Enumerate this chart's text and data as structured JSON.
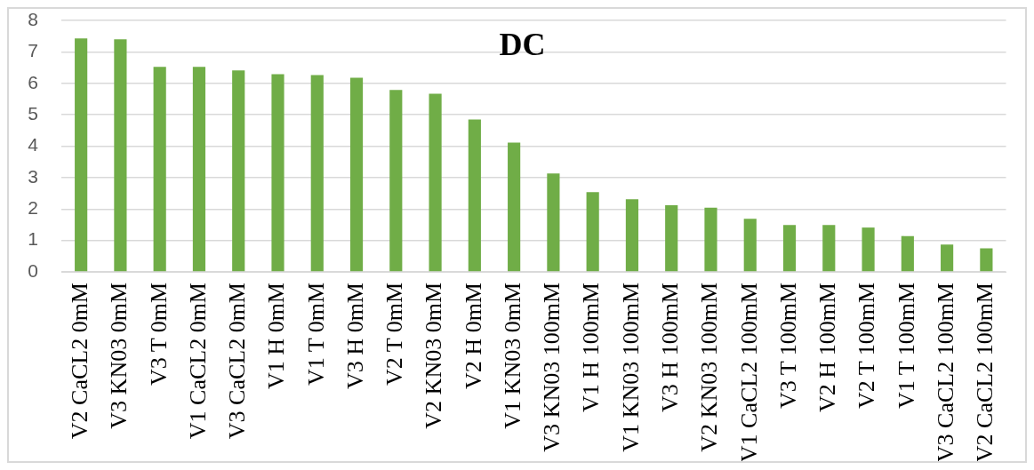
{
  "chart_data": {
    "type": "bar",
    "title": "DC",
    "categories": [
      "V2 CaCL2 0mM",
      "V3 KN03 0mM",
      "V3 T 0mM",
      "V1 CaCL2 0mM",
      "V3 CaCL2 0mM",
      "V1 H 0mM",
      "V1 T 0mM",
      "V3 H 0mM",
      "V2 T 0mM",
      "V2 KN03 0mM",
      "V2 H 0mM",
      "V1 KN03 0mM",
      "V3 KN03 100mM",
      "V1 H 100mM",
      "V1 KN03 100mM",
      "V3 H 100mM",
      "V2 KN03 100mM",
      "V1 CaCL2 100mM",
      "V3 T 100mM",
      "V2 H 100mM",
      "V2 T 100mM",
      "V1 T 100mM",
      "V3 CaCL2 100mM",
      "V2 CaCL2 100mM"
    ],
    "values": [
      7.43,
      7.4,
      6.52,
      6.52,
      6.41,
      6.29,
      6.26,
      6.18,
      5.79,
      5.67,
      4.85,
      4.11,
      3.13,
      2.54,
      2.31,
      2.12,
      2.04,
      1.69,
      1.49,
      1.49,
      1.41,
      1.14,
      0.87,
      0.75
    ],
    "color": "#70ad47",
    "ylim": [
      0,
      8
    ],
    "yticks": [
      0,
      1,
      2,
      3,
      4,
      5,
      6,
      7,
      8
    ],
    "grid": "y"
  }
}
